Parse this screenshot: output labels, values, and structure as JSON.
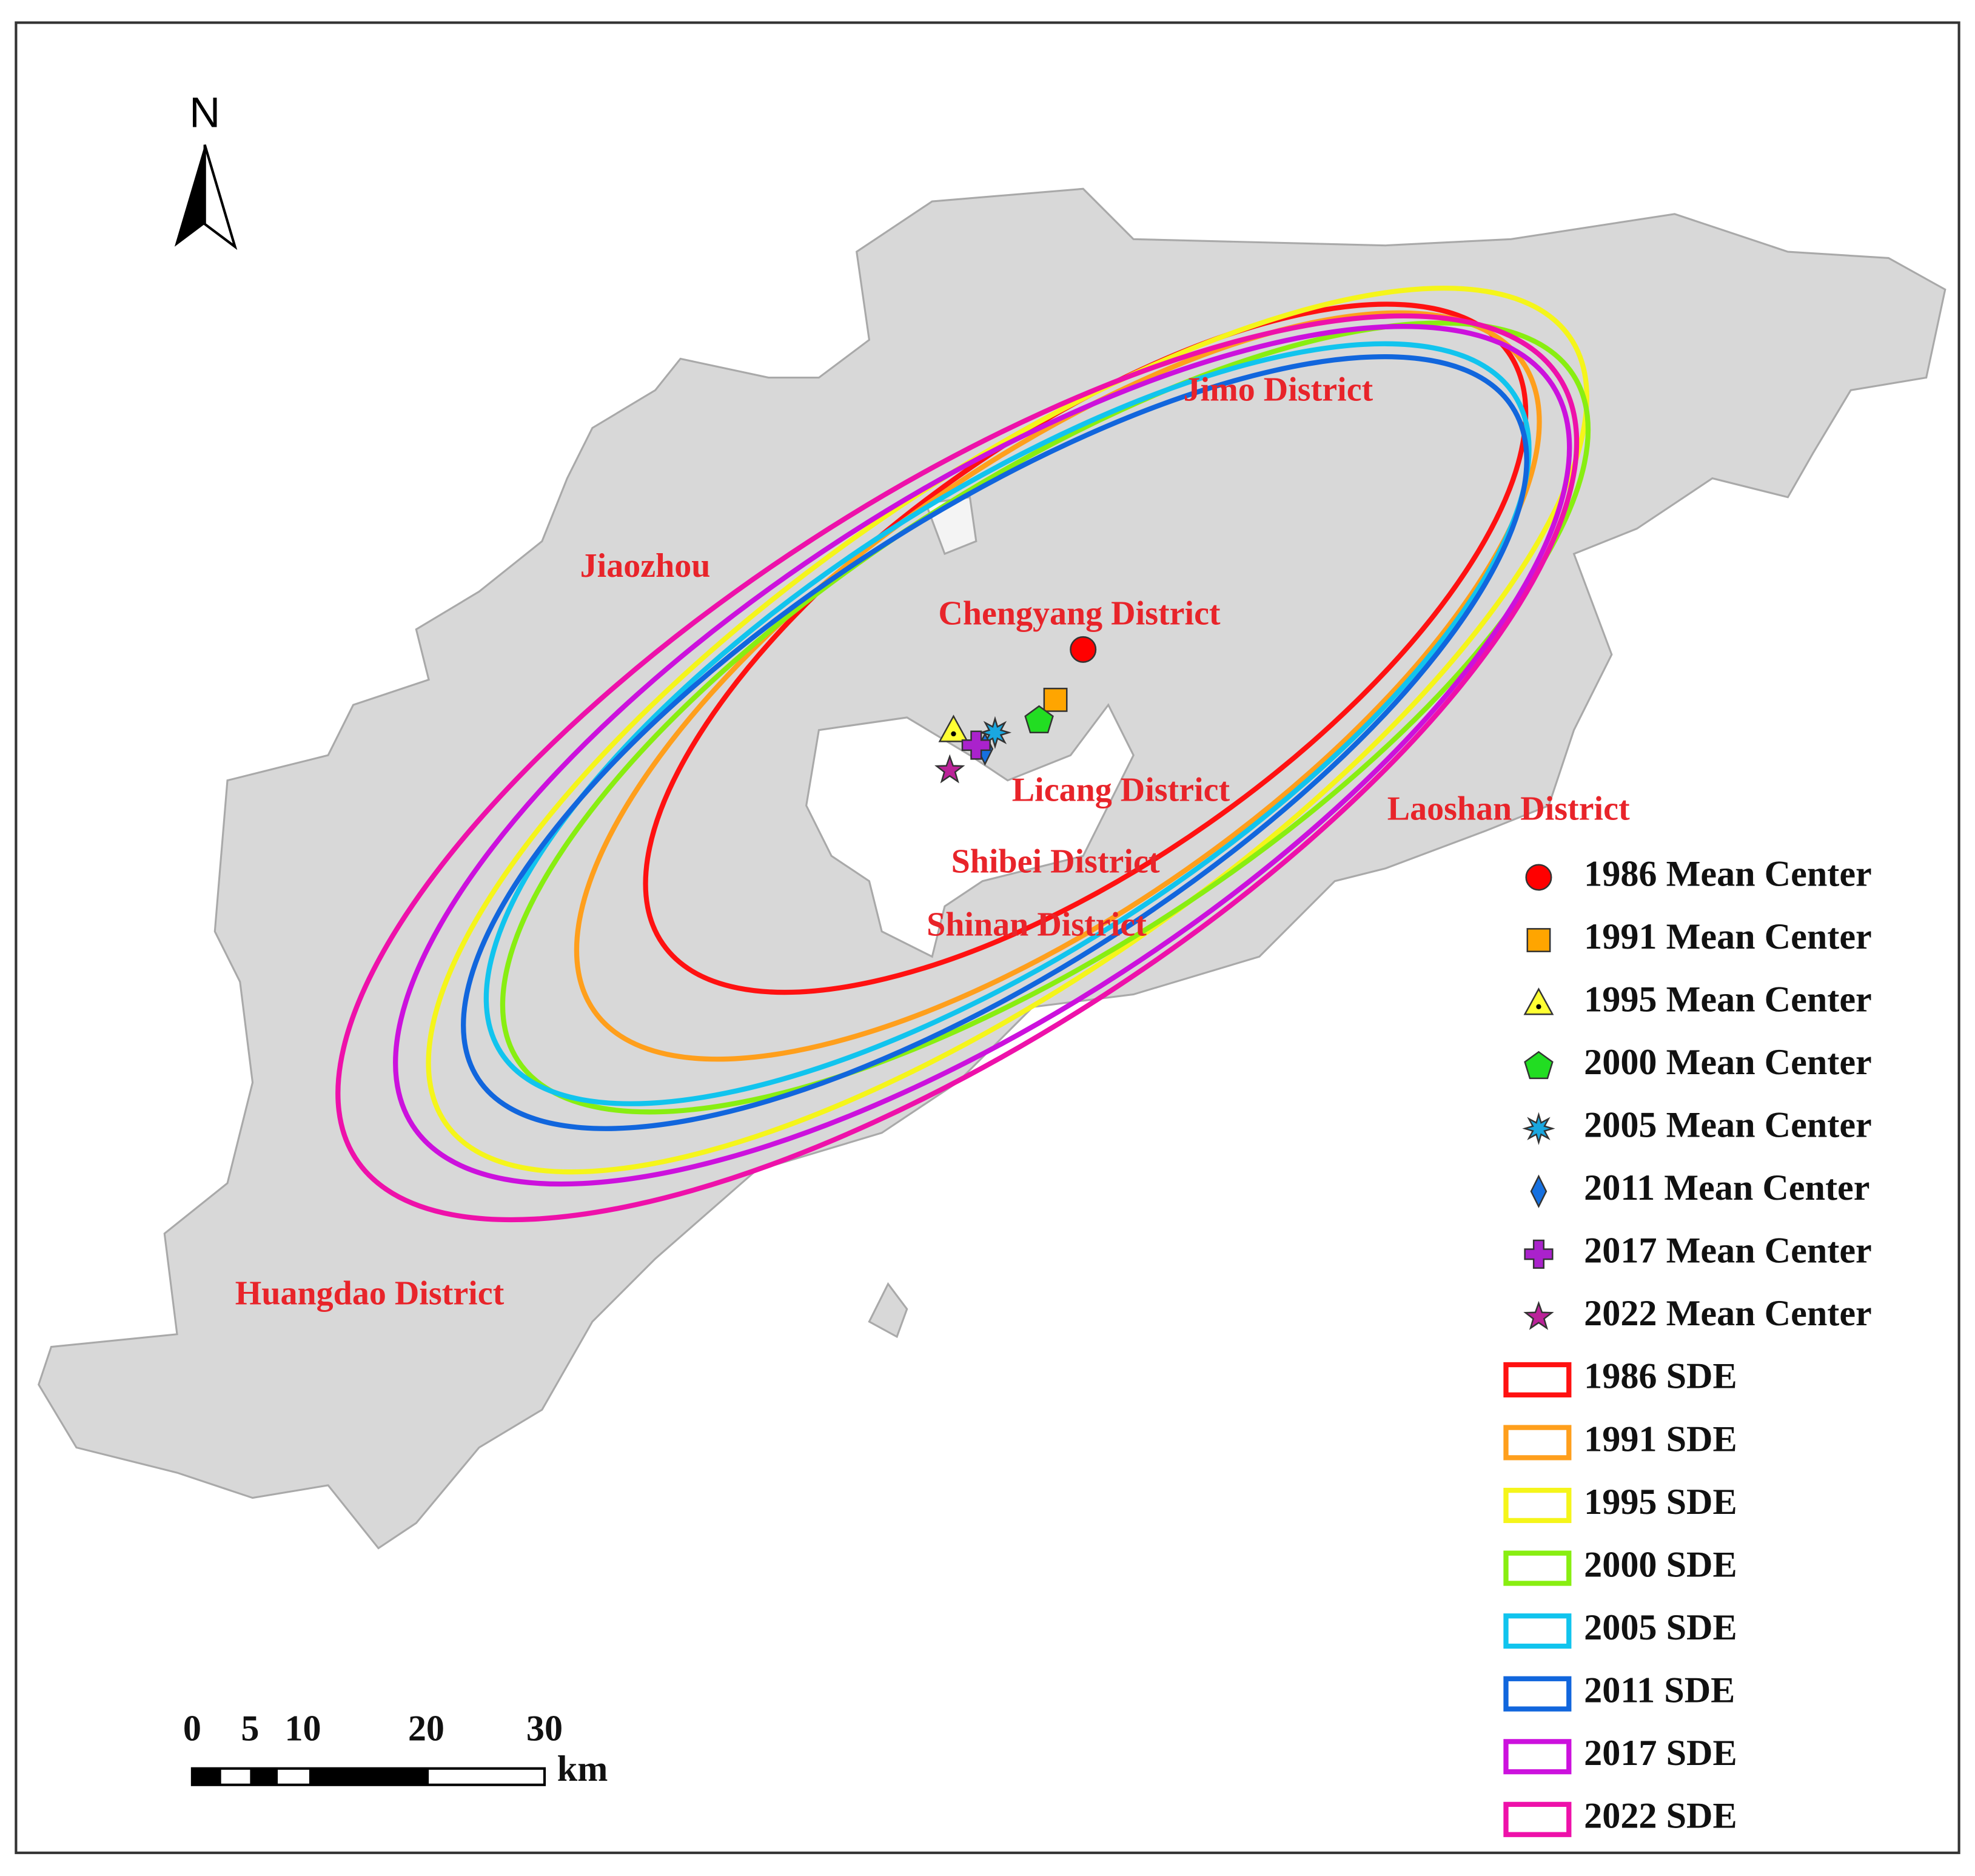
{
  "north_label": "N",
  "districts": [
    "Jimo District",
    "Jiaozhou",
    "Chengyang District",
    "Licang District",
    "Laoshan District",
    "Shibei District",
    "Shinan District",
    "Huangdao District"
  ],
  "legend": {
    "items": [
      {
        "label": "1986 Mean Center",
        "color": "#ff0000"
      },
      {
        "label": "1991 Mean Center",
        "color": "#ffa500"
      },
      {
        "label": "1995 Mean Center",
        "color": "#ffff33"
      },
      {
        "label": "2000 Mean Center",
        "color": "#22dd22"
      },
      {
        "label": "2005 Mean Center",
        "color": "#1aa7e0"
      },
      {
        "label": "2011 Mean Center",
        "color": "#1670e0"
      },
      {
        "label": "2017 Mean Center",
        "color": "#aa22cc"
      },
      {
        "label": "2022 Mean Center",
        "color": "#bb2299"
      },
      {
        "label": "1986 SDE",
        "color": "#ff1111"
      },
      {
        "label": "1991 SDE",
        "color": "#ff9f1c"
      },
      {
        "label": "1995 SDE",
        "color": "#f5f51a"
      },
      {
        "label": "2000 SDE",
        "color": "#88ee11"
      },
      {
        "label": "2005 SDE",
        "color": "#11c4ee"
      },
      {
        "label": "2011 SDE",
        "color": "#1166dd"
      },
      {
        "label": "2017 SDE",
        "color": "#cc11dd"
      },
      {
        "label": "2022 SDE",
        "color": "#ee11aa"
      }
    ]
  },
  "scale_bar": {
    "labels": [
      "0",
      "5",
      "10",
      "20",
      "30"
    ],
    "unit": "km"
  }
}
